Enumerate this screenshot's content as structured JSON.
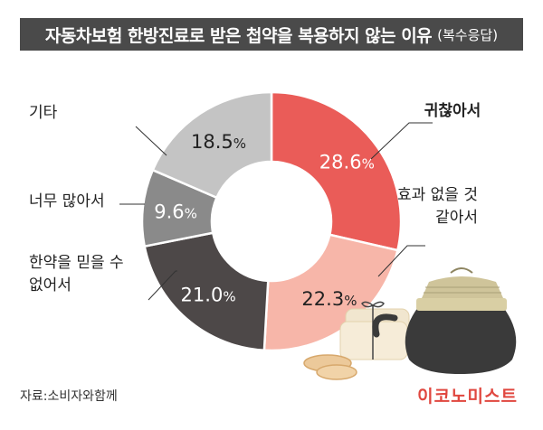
{
  "header": {
    "title": "자동차보험 한방진료로 받은 첩약을 복용하지 않는 이유",
    "subtitle": "(복수응답)"
  },
  "chart_data": {
    "type": "pie",
    "variant": "donut",
    "unit": "%",
    "slices": [
      {
        "label": "귀찮아서",
        "value": 28.6,
        "display": "28.6",
        "color": "#ea5c58",
        "label_color": "#ffffff",
        "name_bold": true
      },
      {
        "label": "효과 없을 것 같아서",
        "value": 22.3,
        "display": "22.3",
        "color": "#f7b6a9",
        "label_color": "#222222",
        "name_bold": false
      },
      {
        "label": "한약을 믿을 수 없어서",
        "value": 21.0,
        "display": "21.0",
        "color": "#4d4848",
        "label_color": "#ffffff",
        "name_bold": false
      },
      {
        "label": "너무 많아서",
        "value": 9.6,
        "display": "9.6",
        "color": "#8a8a8a",
        "label_color": "#ffffff",
        "name_bold": false
      },
      {
        "label": "기타",
        "value": 18.5,
        "display": "18.5",
        "color": "#c4c4c4",
        "label_color": "#222222",
        "name_bold": false
      }
    ]
  },
  "footer": {
    "source": "자료:소비자와함께",
    "brand": "이코노미스트"
  }
}
